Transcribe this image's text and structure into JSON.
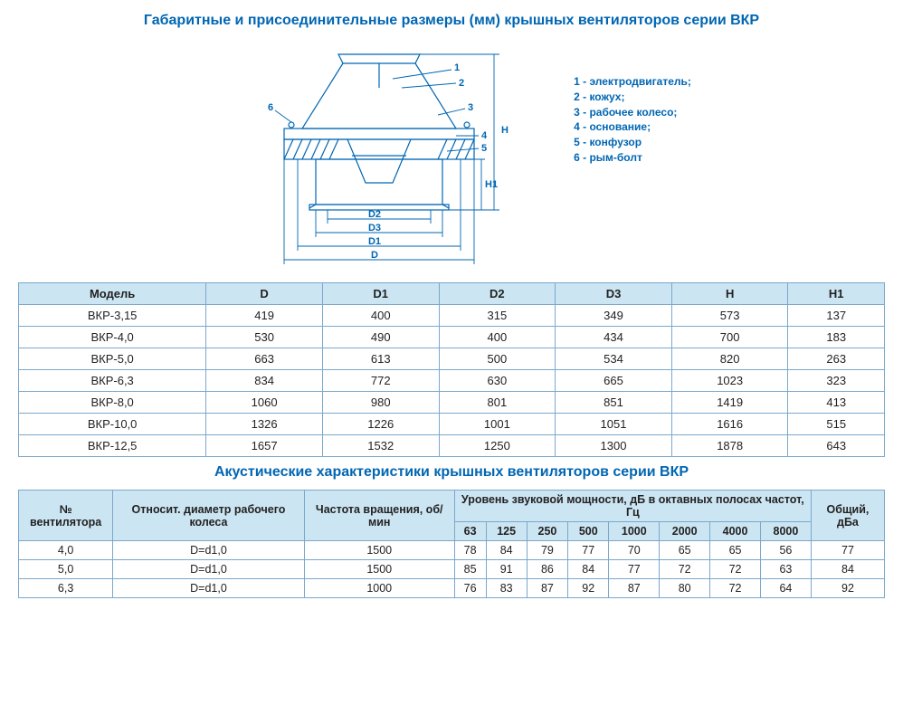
{
  "heading1": "Габаритные и присоединительные размеры (мм) крышных вентиляторов серии ВКР",
  "heading2": "Акустические характеристики крышных вентиляторов серии ВКР",
  "legend": [
    "1 - электродвигатель;",
    "2 - кожух;",
    "3 - рабочее колесо;",
    "4 - основание;",
    "5 - конфузор",
    "6 - рым-болт"
  ],
  "diagram_labels": {
    "D": "D",
    "D1": "D1",
    "D2": "D2",
    "D3": "D3",
    "H": "H",
    "H1": "H1",
    "n1": "1",
    "n2": "2",
    "n3": "3",
    "n4": "4",
    "n5": "5",
    "n6": "6"
  },
  "dims_table": {
    "columns": [
      "Модель",
      "D",
      "D1",
      "D2",
      "D3",
      "H",
      "H1"
    ],
    "rows": [
      [
        "ВКР-3,15",
        "419",
        "400",
        "315",
        "349",
        "573",
        "137"
      ],
      [
        "ВКР-4,0",
        "530",
        "490",
        "400",
        "434",
        "700",
        "183"
      ],
      [
        "ВКР-5,0",
        "663",
        "613",
        "500",
        "534",
        "820",
        "263"
      ],
      [
        "ВКР-6,3",
        "834",
        "772",
        "630",
        "665",
        "1023",
        "323"
      ],
      [
        "ВКР-8,0",
        "1060",
        "980",
        "801",
        "851",
        "1419",
        "413"
      ],
      [
        "ВКР-10,0",
        "1326",
        "1226",
        "1001",
        "1051",
        "1616",
        "515"
      ],
      [
        "ВКР-12,5",
        "1657",
        "1532",
        "1250",
        "1300",
        "1878",
        "643"
      ]
    ]
  },
  "acoustic_table": {
    "head1": {
      "fan_no": "№ вентилятора",
      "diameter": "Относит. диаметр рабочего колеса",
      "rpm": "Частота вращения, об/мин",
      "sound_group": "Уровень звуковой мощности, дБ в октавных полосах частот, Гц",
      "total": "Общий, дБа"
    },
    "freq_cols": [
      "63",
      "125",
      "250",
      "500",
      "1000",
      "2000",
      "4000",
      "8000"
    ],
    "rows": [
      [
        "4,0",
        "D=d1,0",
        "1500",
        "78",
        "84",
        "79",
        "77",
        "70",
        "65",
        "65",
        "56",
        "77"
      ],
      [
        "5,0",
        "D=d1,0",
        "1500",
        "85",
        "91",
        "86",
        "84",
        "77",
        "72",
        "72",
        "63",
        "84"
      ],
      [
        "6,3",
        "D=d1,0",
        "1000",
        "76",
        "83",
        "87",
        "92",
        "87",
        "80",
        "72",
        "64",
        "92"
      ]
    ]
  },
  "colors": {
    "heading": "#0066b3",
    "border": "#7aa8cc",
    "th_bg": "#cce5f2",
    "bg": "#ffffff"
  }
}
